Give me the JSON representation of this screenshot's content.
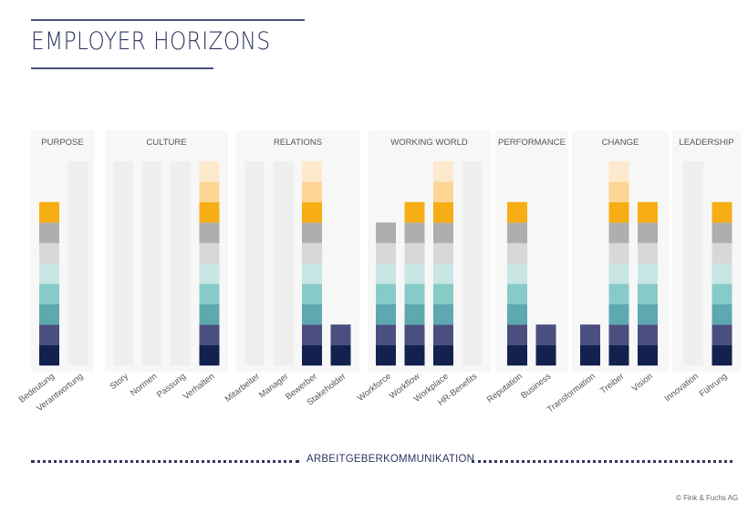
{
  "header": {
    "title": "EMPLOYER HORIZONS"
  },
  "footer": {
    "label": "ARBEITGEBERKOMMUNIKATION",
    "copyright": "© Fink & Fuchs AG"
  },
  "chart_data": {
    "type": "bar",
    "stacked": true,
    "max_segments": 10,
    "segment_colors": [
      "#13214f",
      "#4b4f80",
      "#5ea8b0",
      "#86cbc7",
      "#c8e6e4",
      "#d8d8d8",
      "#afadb0",
      "#f6ae14",
      "#fdd594",
      "#fde9cc"
    ],
    "track_color": "#efefef",
    "panel_color": "#f7f7f7",
    "groups": [
      {
        "title": "PURPOSE",
        "bars": [
          {
            "label": "Bedeutung",
            "value": 8
          },
          {
            "label": "Verantwortung",
            "value": 0
          }
        ]
      },
      {
        "title": "CULTURE",
        "bars": [
          {
            "label": "Story",
            "value": 0
          },
          {
            "label": "Normen",
            "value": 0
          },
          {
            "label": "Passung",
            "value": 0
          },
          {
            "label": "Verhalten",
            "value": 10
          }
        ]
      },
      {
        "title": "RELATIONS",
        "bars": [
          {
            "label": "Mitarbeiter",
            "value": 0
          },
          {
            "label": "Manager",
            "value": 0
          },
          {
            "label": "Bewerber",
            "value": 10
          },
          {
            "label": "Stakeholder",
            "value": 2
          }
        ]
      },
      {
        "title": "WORKING WORLD",
        "bars": [
          {
            "label": "Workforce",
            "value": 7
          },
          {
            "label": "Workflow",
            "value": 8
          },
          {
            "label": "Workplace",
            "value": 10
          },
          {
            "label": "HR-Benefits",
            "value": 0
          }
        ]
      },
      {
        "title": "PERFORMANCE",
        "bars": [
          {
            "label": "Reputation",
            "value": 8
          },
          {
            "label": "Business",
            "value": 2
          }
        ]
      },
      {
        "title": "CHANGE",
        "bars": [
          {
            "label": "Transformation",
            "value": 2
          },
          {
            "label": "Treiber",
            "value": 10
          },
          {
            "label": "Vision",
            "value": 8
          }
        ]
      },
      {
        "title": "LEADERSHIP",
        "bars": [
          {
            "label": "Innovation",
            "value": 0
          },
          {
            "label": "Führung",
            "value": 8
          }
        ]
      }
    ]
  }
}
